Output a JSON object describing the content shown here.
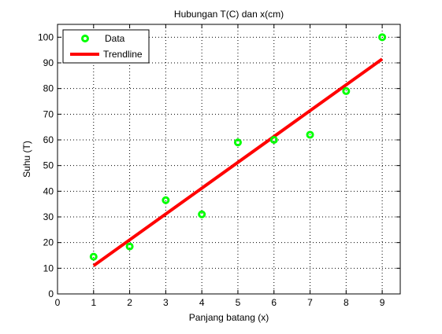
{
  "chart_data": {
    "type": "scatter",
    "title": "Hubungan T(C) dan x(cm)",
    "xlabel": "Panjang batang (x)",
    "ylabel": "Suhu (T)",
    "xlim": [
      0,
      9.5
    ],
    "ylim": [
      0,
      105
    ],
    "xticks": [
      0,
      1,
      2,
      3,
      4,
      5,
      6,
      7,
      8,
      9
    ],
    "yticks": [
      0,
      10,
      20,
      30,
      40,
      50,
      60,
      70,
      80,
      90,
      100
    ],
    "grid": true,
    "legend_position": "top-left",
    "series": [
      {
        "name": "Data",
        "kind": "scatter",
        "color": "#00ff00",
        "x": [
          1,
          2,
          3,
          4,
          5,
          6,
          7,
          8,
          9
        ],
        "y": [
          14.5,
          18.5,
          36.5,
          31,
          59,
          60,
          62,
          79,
          100
        ]
      },
      {
        "name": "Trendline",
        "kind": "line",
        "color": "#ff0000",
        "x": [
          1,
          9
        ],
        "y": [
          11,
          91.5
        ]
      }
    ]
  }
}
